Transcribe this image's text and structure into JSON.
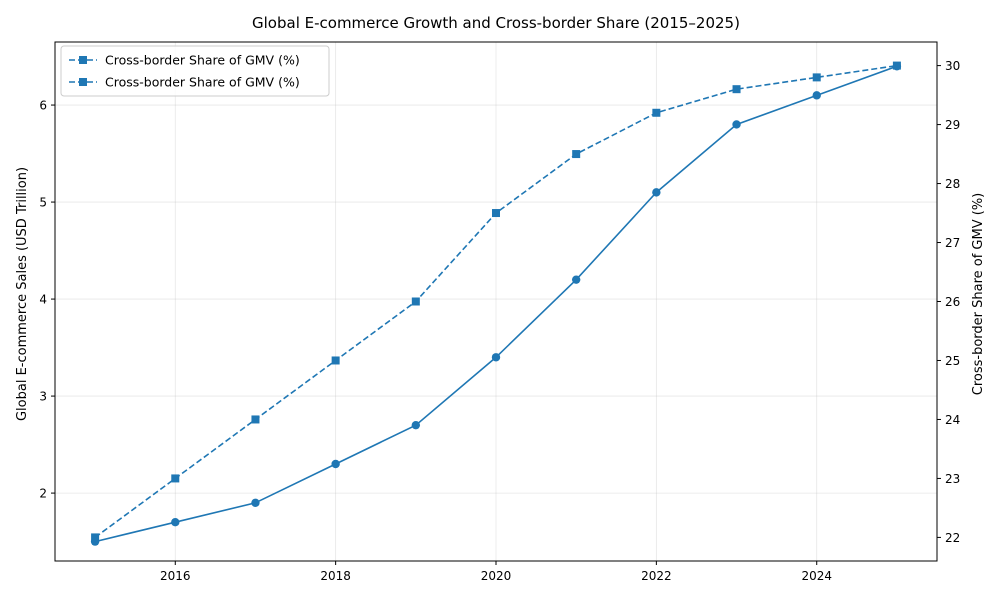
{
  "chart_data": {
    "type": "line",
    "title": "Global E-commerce Growth and Cross-border Share (2015–2025)",
    "x": [
      2015,
      2016,
      2017,
      2018,
      2019,
      2020,
      2021,
      2022,
      2023,
      2024,
      2025
    ],
    "x_ticks": [
      2016,
      2018,
      2020,
      2022,
      2024
    ],
    "xlim": [
      2014.5,
      2025.5
    ],
    "ylabel_left": "Global E-commerce Sales (USD Trillion)",
    "ylabel_right": "Cross-border Share of GMV (%)",
    "ylim_left": [
      1.3,
      6.65
    ],
    "ylim_right": [
      21.6,
      30.4
    ],
    "yticks_left": [
      2,
      3,
      4,
      5,
      6
    ],
    "yticks_right": [
      22,
      23,
      24,
      25,
      26,
      27,
      28,
      29,
      30
    ],
    "grid": true,
    "legend_position": "top-left",
    "color": "#1f77b4",
    "series": [
      {
        "axis": "left",
        "marker": "circle",
        "linestyle": "solid",
        "values": [
          1.5,
          1.7,
          1.9,
          2.3,
          2.7,
          3.4,
          4.2,
          5.1,
          5.8,
          6.1,
          6.4
        ]
      },
      {
        "name": "Cross-border Share of GMV (%)",
        "axis": "right",
        "marker": "square",
        "linestyle": "dashed",
        "values": [
          22.0,
          23.0,
          24.0,
          25.0,
          26.0,
          27.5,
          28.5,
          29.2,
          29.6,
          29.8,
          30.0
        ]
      }
    ],
    "legend_entries": [
      "Cross-border Share of GMV (%)",
      "Cross-border Share of GMV (%)"
    ]
  }
}
